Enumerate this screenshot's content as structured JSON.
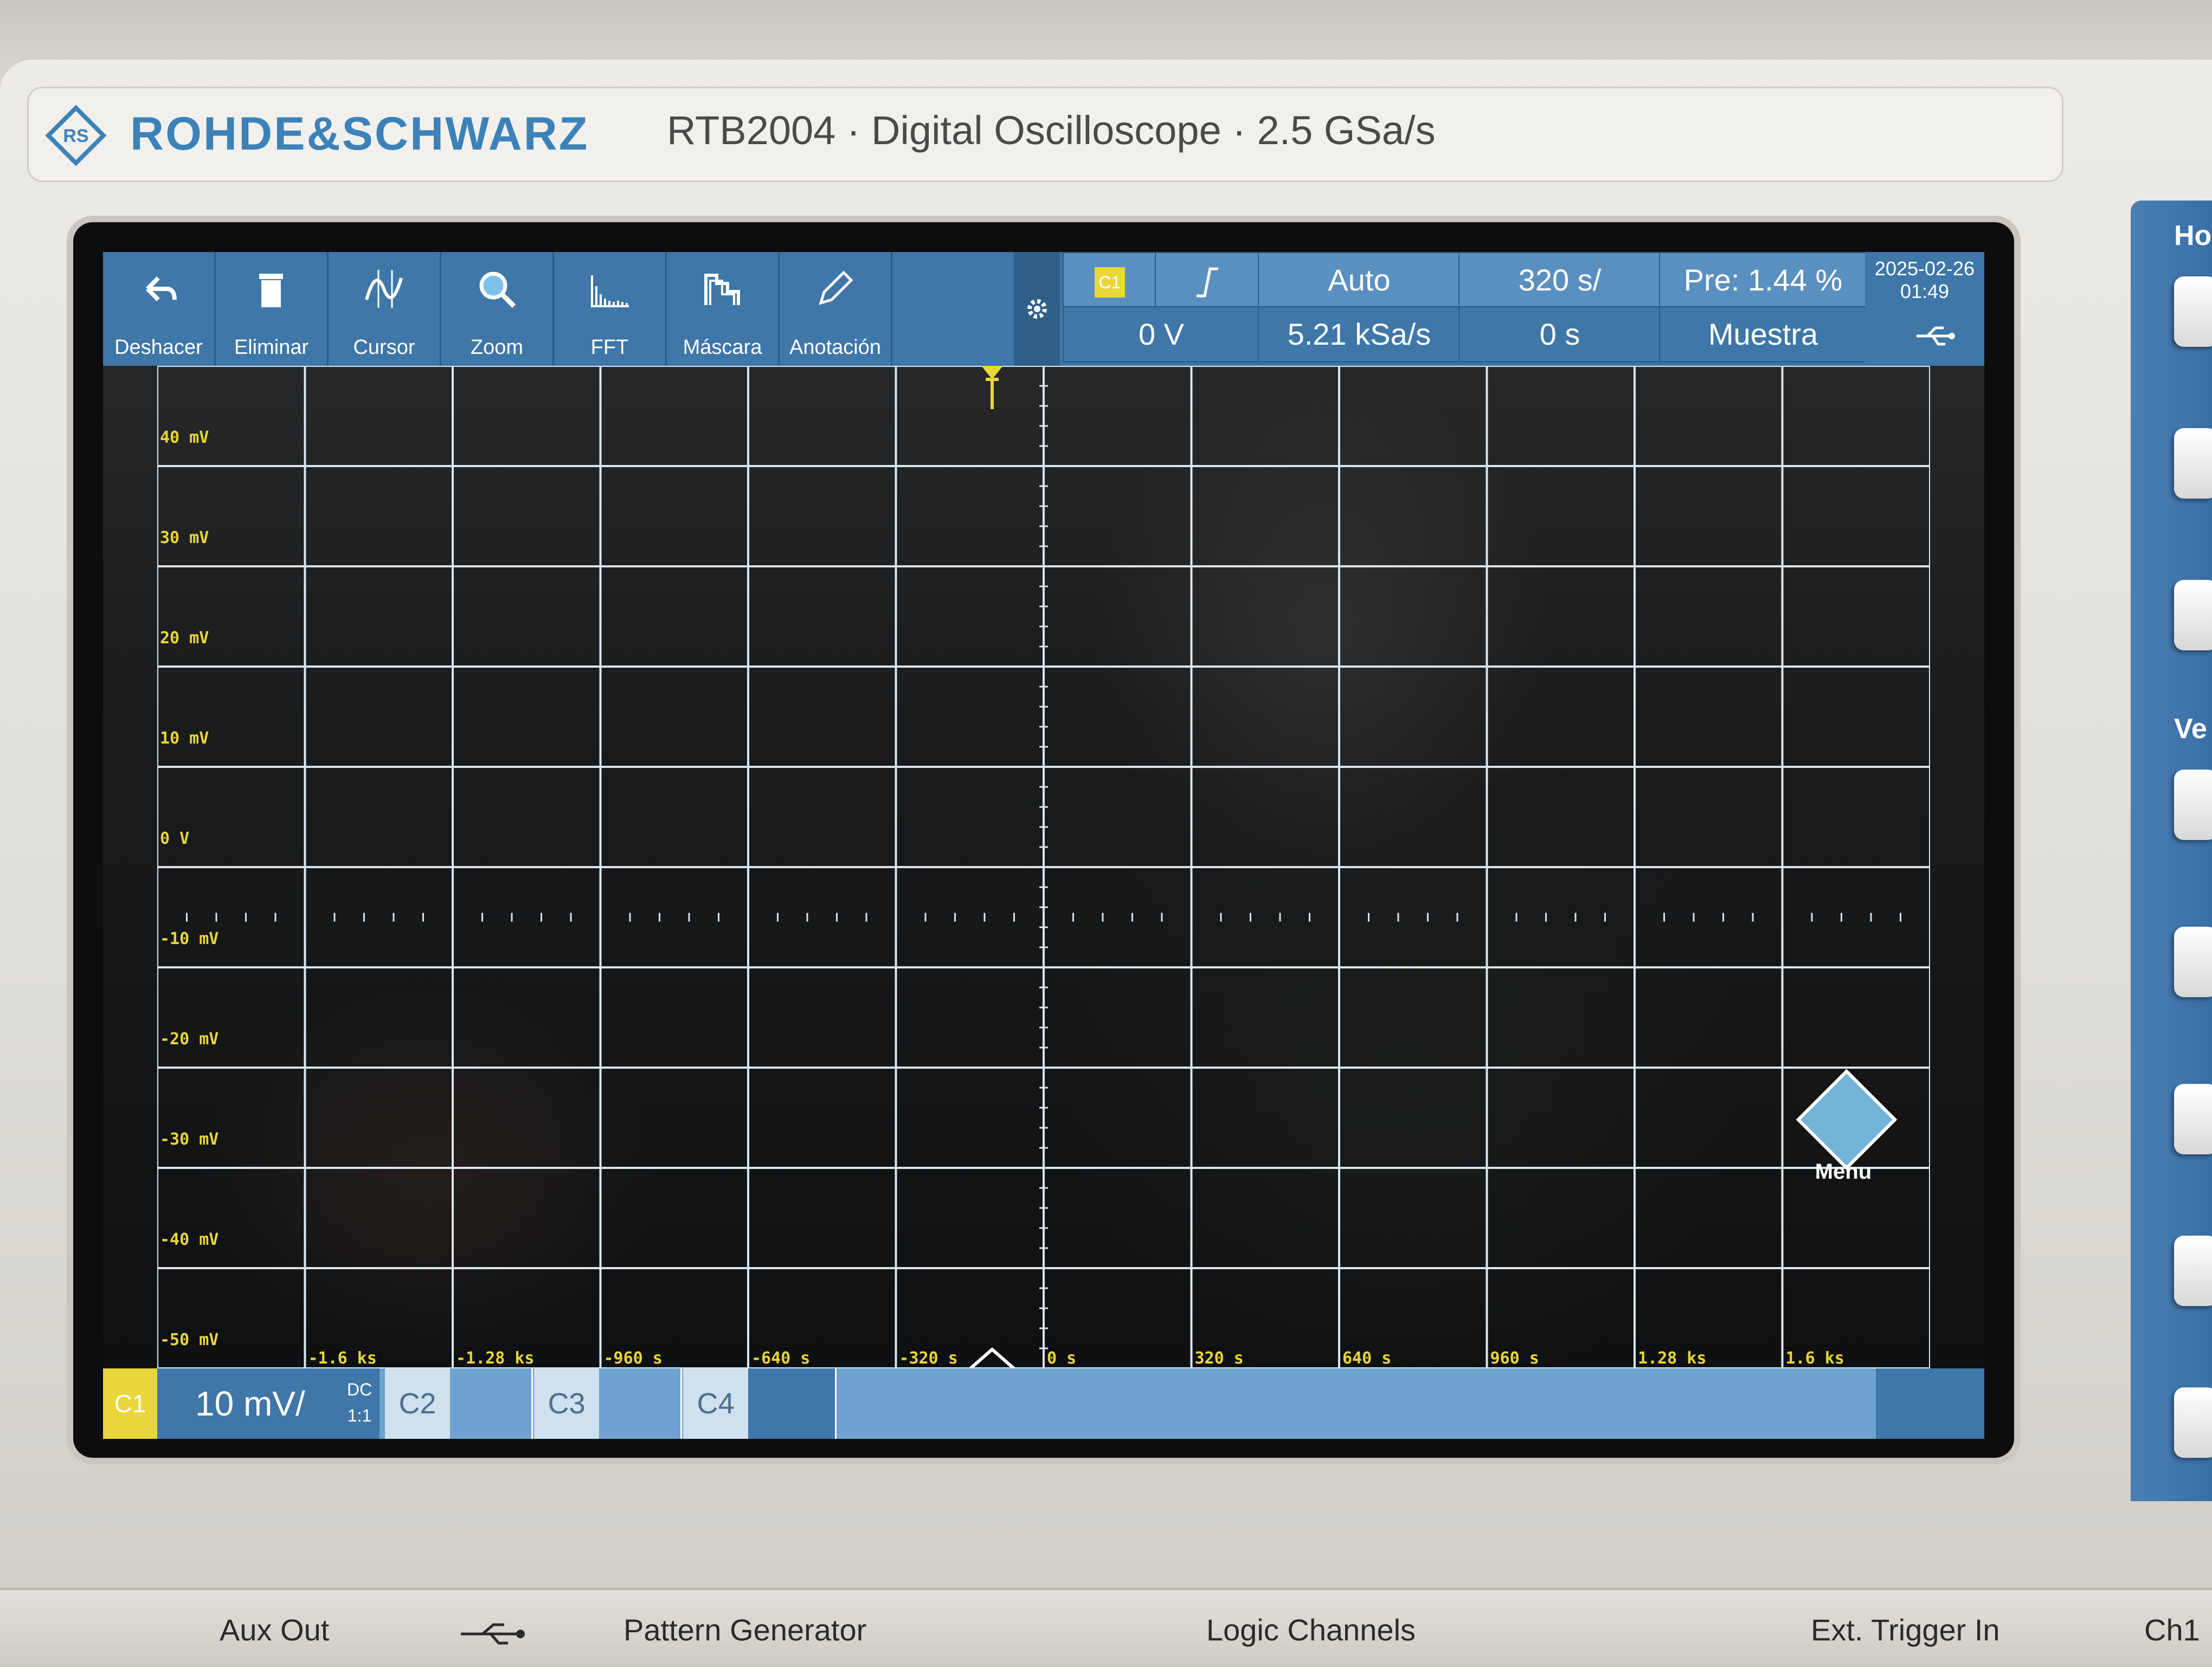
{
  "brand": {
    "name": "ROHDE&SCHWARZ",
    "model_line": "RTB2004 · Digital Oscilloscope · 2.5 GSa/s"
  },
  "toolbar": {
    "tools": [
      {
        "label": "Deshacer",
        "icon": "undo-icon"
      },
      {
        "label": "Eliminar",
        "icon": "trash-icon"
      },
      {
        "label": "Cursor",
        "icon": "cursor-wave-icon"
      },
      {
        "label": "Zoom",
        "icon": "magnifier-icon"
      },
      {
        "label": "FFT",
        "icon": "fft-icon"
      },
      {
        "label": "Máscara",
        "icon": "mask-icon"
      },
      {
        "label": "Anotación",
        "icon": "pencil-icon"
      }
    ],
    "settings_icon": "gear-icon"
  },
  "trigger": {
    "source": "C1",
    "slope_icon": "rising-edge-icon",
    "level": "0 V",
    "mode": "Auto",
    "sample_rate": "5.21 kSa/s",
    "time_scale": "320 s/",
    "time_offset": "0 s",
    "pretrigger": "Pre: 1.44 %",
    "acquisition": "Muestra",
    "date": "2025-02-26",
    "time": "01:49",
    "usb_icon": "usb-icon"
  },
  "y_labels": [
    "40 mV",
    "30 mV",
    "20 mV",
    "10 mV",
    "0 V",
    "-10 mV",
    "-20 mV",
    "-30 mV",
    "-40 mV",
    "-50 mV"
  ],
  "x_labels": [
    "-1.6 ks",
    "-1.28 ks",
    "-960 s",
    "-640 s",
    "-320 s",
    "0 s",
    "320 s",
    "640 s",
    "960 s",
    "1.28 ks",
    "1.6 ks"
  ],
  "channels": {
    "c1": {
      "tag": "C1",
      "scale": "10 mV/",
      "coupling": "DC",
      "probe": "1:1"
    },
    "others": [
      "C2",
      "C3",
      "C4"
    ]
  },
  "menu_label": "Menu",
  "right_panel": {
    "horizontal": "Hor",
    "vertical": "Ve"
  },
  "bottom_labels": {
    "aux_out": "Aux Out",
    "pattern_generator": "Pattern Generator",
    "logic_channels": "Logic Channels",
    "ext_trigger": "Ext. Trigger In",
    "ch1": "Ch1"
  },
  "colors": {
    "toolbar": "#3e77a8",
    "trace_label": "#e9d63a",
    "grid": "#d8e6f0"
  }
}
